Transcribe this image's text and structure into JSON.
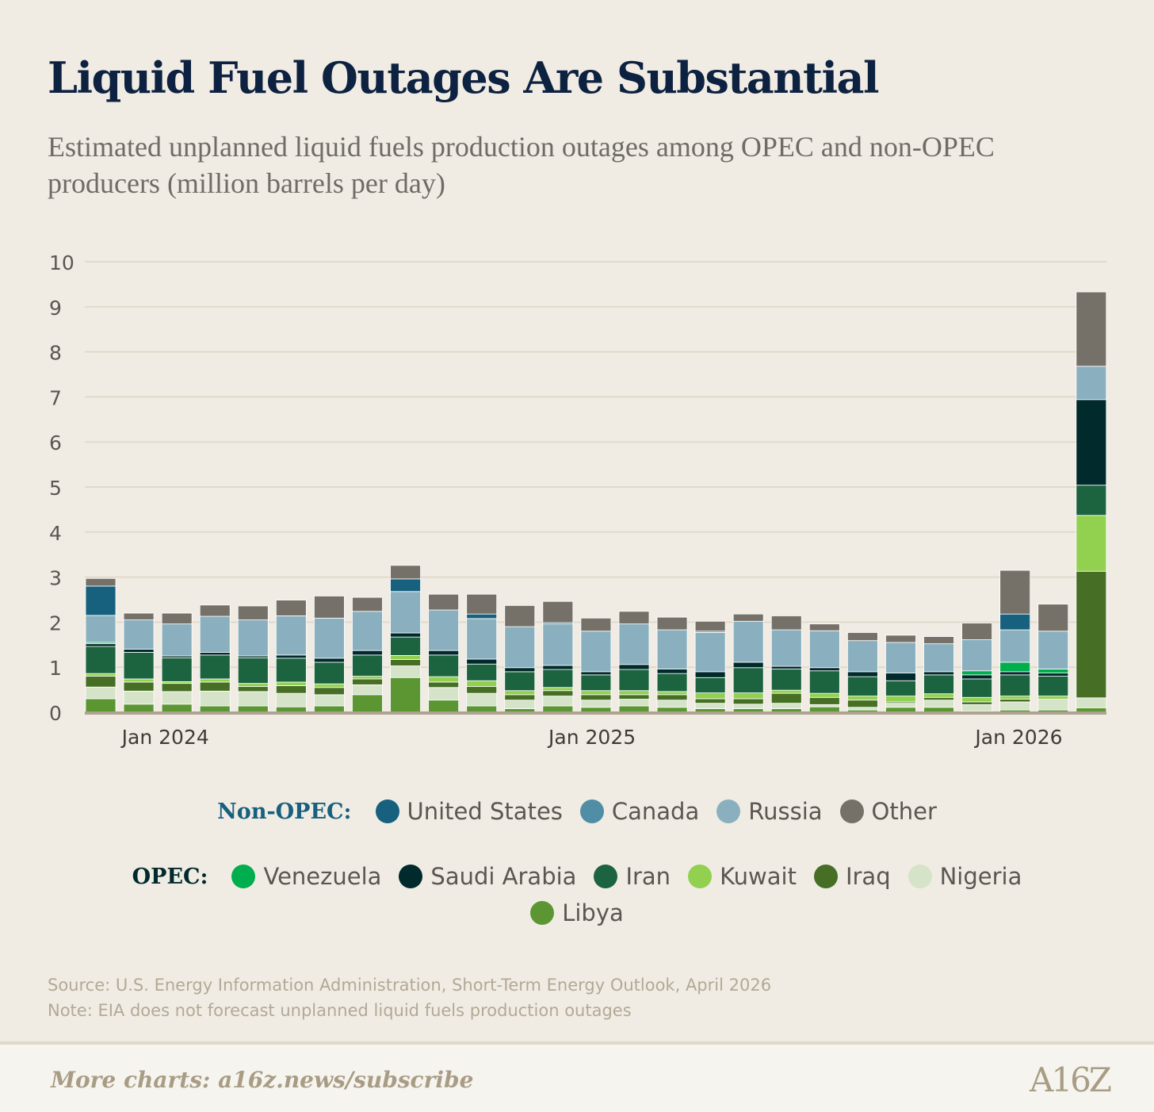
{
  "title": "Liquid Fuel Outages Are Substantial",
  "subtitle": "Estimated unplanned liquid fuels production outages among OPEC and non-OPEC producers (million barrels per day)",
  "legend": {
    "non_opec_label": "Non-OPEC:",
    "opec_label": "OPEC:"
  },
  "source": "Source: U.S. Energy Information Administration, Short-Term Energy Outlook, April 2026",
  "note": "Note: EIA does not forecast unplanned liquid fuels production outages",
  "footer": {
    "link": "More charts: a16z.news/subscribe",
    "logo": "A16Z"
  },
  "chart_data": {
    "type": "bar",
    "stacked": true,
    "title": "Liquid Fuel Outages Are Substantial",
    "ylabel": "million barrels per day",
    "ylim": [
      0,
      10
    ],
    "yticks": [
      0,
      1,
      2,
      3,
      4,
      5,
      6,
      7,
      8,
      9,
      10
    ],
    "grid": true,
    "legend_position": "bottom",
    "bar_count": 27,
    "xticks": [
      {
        "label": "Jan 2024",
        "at_index": 1.7
      },
      {
        "label": "Jan 2025",
        "at_index": 12.9
      },
      {
        "label": "Jan 2026",
        "at_index": 24.1
      }
    ],
    "series": [
      {
        "name": "Libya",
        "group": "OPEC",
        "color": "#5b9632",
        "values": [
          0.3,
          0.18,
          0.18,
          0.14,
          0.14,
          0.12,
          0.14,
          0.39,
          0.77,
          0.27,
          0.14,
          0.08,
          0.14,
          0.11,
          0.14,
          0.11,
          0.08,
          0.08,
          0.08,
          0.12,
          0.05,
          0.11,
          0.11,
          0.02,
          0.05,
          0.05,
          0.1
        ]
      },
      {
        "name": "Nigeria",
        "group": "OPEC",
        "color": "#d5e3c8",
        "values": [
          0.26,
          0.29,
          0.28,
          0.33,
          0.32,
          0.3,
          0.25,
          0.22,
          0.26,
          0.28,
          0.28,
          0.19,
          0.22,
          0.16,
          0.15,
          0.16,
          0.12,
          0.1,
          0.12,
          0.05,
          0.06,
          0.09,
          0.16,
          0.15,
          0.18,
          0.22,
          0.22
        ]
      },
      {
        "name": "Iraq",
        "group": "OPEC",
        "color": "#466e24",
        "values": [
          0.24,
          0.2,
          0.18,
          0.2,
          0.11,
          0.17,
          0.16,
          0.13,
          0.14,
          0.12,
          0.15,
          0.12,
          0.12,
          0.12,
          0.1,
          0.12,
          0.1,
          0.12,
          0.22,
          0.16,
          0.16,
          0.03,
          0.06,
          0.06,
          0.06,
          0.02,
          2.81
        ]
      },
      {
        "name": "Kuwait",
        "group": "OPEC",
        "color": "#92d050",
        "values": [
          0.06,
          0.07,
          0.04,
          0.07,
          0.07,
          0.08,
          0.08,
          0.06,
          0.09,
          0.12,
          0.13,
          0.09,
          0.07,
          0.09,
          0.09,
          0.07,
          0.13,
          0.13,
          0.07,
          0.09,
          0.09,
          0.13,
          0.08,
          0.1,
          0.07,
          0.07,
          1.24
        ]
      },
      {
        "name": "Iran",
        "group": "OPEC",
        "color": "#1c6340",
        "values": [
          0.6,
          0.59,
          0.53,
          0.53,
          0.57,
          0.53,
          0.48,
          0.47,
          0.41,
          0.48,
          0.37,
          0.42,
          0.4,
          0.35,
          0.47,
          0.4,
          0.34,
          0.56,
          0.47,
          0.5,
          0.43,
          0.34,
          0.42,
          0.41,
          0.47,
          0.44,
          0.67
        ]
      },
      {
        "name": "Saudi Arabia",
        "group": "OPEC",
        "color": "#002a2b",
        "values": [
          0.06,
          0.07,
          0.04,
          0.06,
          0.04,
          0.07,
          0.09,
          0.1,
          0.09,
          0.1,
          0.11,
          0.09,
          0.09,
          0.07,
          0.11,
          0.1,
          0.13,
          0.12,
          0.06,
          0.07,
          0.11,
          0.17,
          0.07,
          0.09,
          0.07,
          0.07,
          1.9
        ]
      },
      {
        "name": "Venezuela",
        "group": "OPEC",
        "color": "#00ae4d",
        "values": [
          0.03,
          0,
          0,
          0,
          0,
          0,
          0,
          0,
          0,
          0,
          0,
          0,
          0,
          0,
          0,
          0,
          0,
          0,
          0,
          0,
          0,
          0,
          0,
          0.09,
          0.21,
          0.09,
          0
        ]
      },
      {
        "name": "Russia",
        "group": "Non-OPEC",
        "color": "#8ab0bf",
        "values": [
          0.6,
          0.65,
          0.71,
          0.8,
          0.8,
          0.87,
          0.89,
          0.87,
          0.92,
          0.9,
          0.9,
          0.91,
          0.92,
          0.9,
          0.9,
          0.87,
          0.87,
          0.91,
          0.81,
          0.82,
          0.69,
          0.68,
          0.62,
          0.69,
          0.72,
          0.84,
          0.74
        ]
      },
      {
        "name": "Canada",
        "group": "Non-OPEC",
        "color": "#4f8ea5",
        "values": [
          0,
          0,
          0,
          0,
          0,
          0,
          0,
          0,
          0,
          0,
          0,
          0,
          0,
          0,
          0,
          0,
          0.03,
          0,
          0,
          0,
          0,
          0,
          0,
          0,
          0,
          0,
          0
        ]
      },
      {
        "name": "United States",
        "group": "Non-OPEC",
        "color": "#17607e",
        "values": [
          0.65,
          0,
          0,
          0,
          0,
          0,
          0,
          0,
          0.28,
          0,
          0.1,
          0,
          0.03,
          0,
          0,
          0,
          0,
          0,
          0,
          0,
          0,
          0,
          0,
          0,
          0.35,
          0,
          0
        ]
      },
      {
        "name": "Other",
        "group": "Non-OPEC",
        "color": "#767168",
        "values": [
          0.17,
          0.15,
          0.24,
          0.25,
          0.31,
          0.35,
          0.49,
          0.31,
          0.3,
          0.35,
          0.44,
          0.47,
          0.47,
          0.29,
          0.28,
          0.28,
          0.22,
          0.16,
          0.31,
          0.15,
          0.18,
          0.16,
          0.16,
          0.37,
          0.97,
          0.6,
          1.65
        ]
      }
    ],
    "legend_order": {
      "Non-OPEC": [
        "United States",
        "Canada",
        "Russia",
        "Other"
      ],
      "OPEC": [
        "Venezuela",
        "Saudi Arabia",
        "Iran",
        "Kuwait",
        "Iraq",
        "Nigeria",
        "Libya"
      ]
    }
  }
}
